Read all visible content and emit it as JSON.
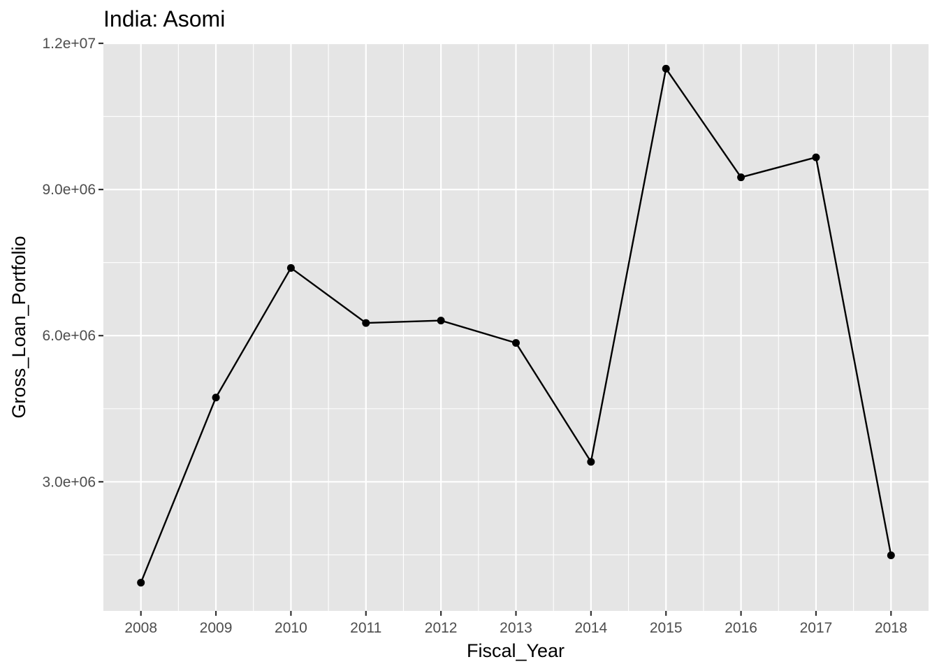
{
  "chart_data": {
    "type": "line",
    "title": "India:  Asomi",
    "xlabel": "Fiscal_Year",
    "ylabel": "Gross_Loan_Portfolio",
    "x": [
      2008,
      2009,
      2010,
      2011,
      2012,
      2013,
      2014,
      2015,
      2016,
      2017,
      2018
    ],
    "x_tick_labels": [
      "2008",
      "2009",
      "2010",
      "2011",
      "2012",
      "2013",
      "2014",
      "2015",
      "2016",
      "2017",
      "2018"
    ],
    "series": [
      {
        "values": [
          930000,
          4730000,
          7390000,
          6260000,
          6310000,
          5850000,
          3410000,
          11480000,
          9250000,
          9660000,
          1490000
        ]
      }
    ],
    "xlim": [
      2007.5,
      2018.5
    ],
    "ylim": [
      350000,
      12000000
    ],
    "y_ticks": [
      3000000,
      6000000,
      9000000,
      12000000
    ],
    "y_tick_labels": [
      "3.0e+06",
      "6.0e+06",
      "9.0e+06",
      "1.2e+07"
    ],
    "y_minor_ticks": [
      1500000,
      4500000,
      7500000,
      10500000
    ],
    "grid": true,
    "legend": "none",
    "colors": {
      "panel_background": "#e5e5e5",
      "grid": "#ffffff",
      "line": "#000000",
      "point": "#000000"
    }
  }
}
